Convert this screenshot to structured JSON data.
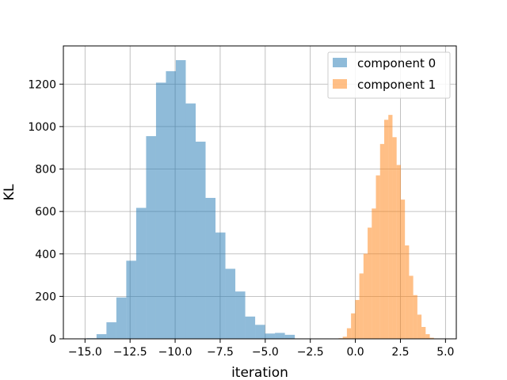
{
  "chart_data": {
    "type": "histogram",
    "xlabel": "iteration",
    "ylabel": "KL",
    "xlim": [
      -16.2,
      5.6
    ],
    "ylim": [
      0,
      1380
    ],
    "xticks": [
      -15.0,
      -12.5,
      -10.0,
      -7.5,
      -5.0,
      -2.5,
      0.0,
      2.5,
      5.0
    ],
    "xtick_labels": [
      "−15.0",
      "−12.5",
      "−10.0",
      "−7.5",
      "−5.0",
      "−2.5",
      "0.0",
      "2.5",
      "5.0"
    ],
    "yticks": [
      0,
      200,
      400,
      600,
      800,
      1000,
      1200
    ],
    "ytick_labels": [
      "0",
      "200",
      "400",
      "600",
      "800",
      "1000",
      "1200"
    ],
    "grid": true,
    "legend_position": "top-right",
    "series": [
      {
        "name": "component 0",
        "color": "#1f77b4",
        "alpha": 0.5,
        "bin_edges": [
          -14.91,
          -14.36,
          -13.81,
          -13.26,
          -12.71,
          -12.16,
          -11.61,
          -11.06,
          -10.51,
          -9.96,
          -9.41,
          -8.86,
          -8.31,
          -7.76,
          -7.21,
          -6.66,
          -6.11,
          -5.56,
          -5.01,
          -4.46,
          -3.91,
          -3.36,
          -2.81
        ],
        "counts": [
          3,
          22,
          78,
          195,
          368,
          617,
          955,
          1207,
          1261,
          1313,
          1109,
          929,
          664,
          501,
          330,
          223,
          105,
          66,
          25,
          28,
          19,
          0
        ]
      },
      {
        "name": "component 1",
        "color": "#ff7f0e",
        "alpha": 0.5,
        "bin_edges": [
          -0.93,
          -0.7,
          -0.47,
          -0.24,
          -0.01,
          0.22,
          0.45,
          0.68,
          0.91,
          1.14,
          1.37,
          1.6,
          1.83,
          2.06,
          2.29,
          2.52,
          2.75,
          2.98,
          3.21,
          3.44,
          3.67,
          3.9,
          4.13,
          4.36
        ],
        "counts": [
          3,
          10,
          50,
          120,
          183,
          308,
          401,
          524,
          614,
          770,
          918,
          1032,
          1055,
          950,
          819,
          656,
          440,
          297,
          206,
          114,
          56,
          22,
          5
        ]
      }
    ]
  }
}
